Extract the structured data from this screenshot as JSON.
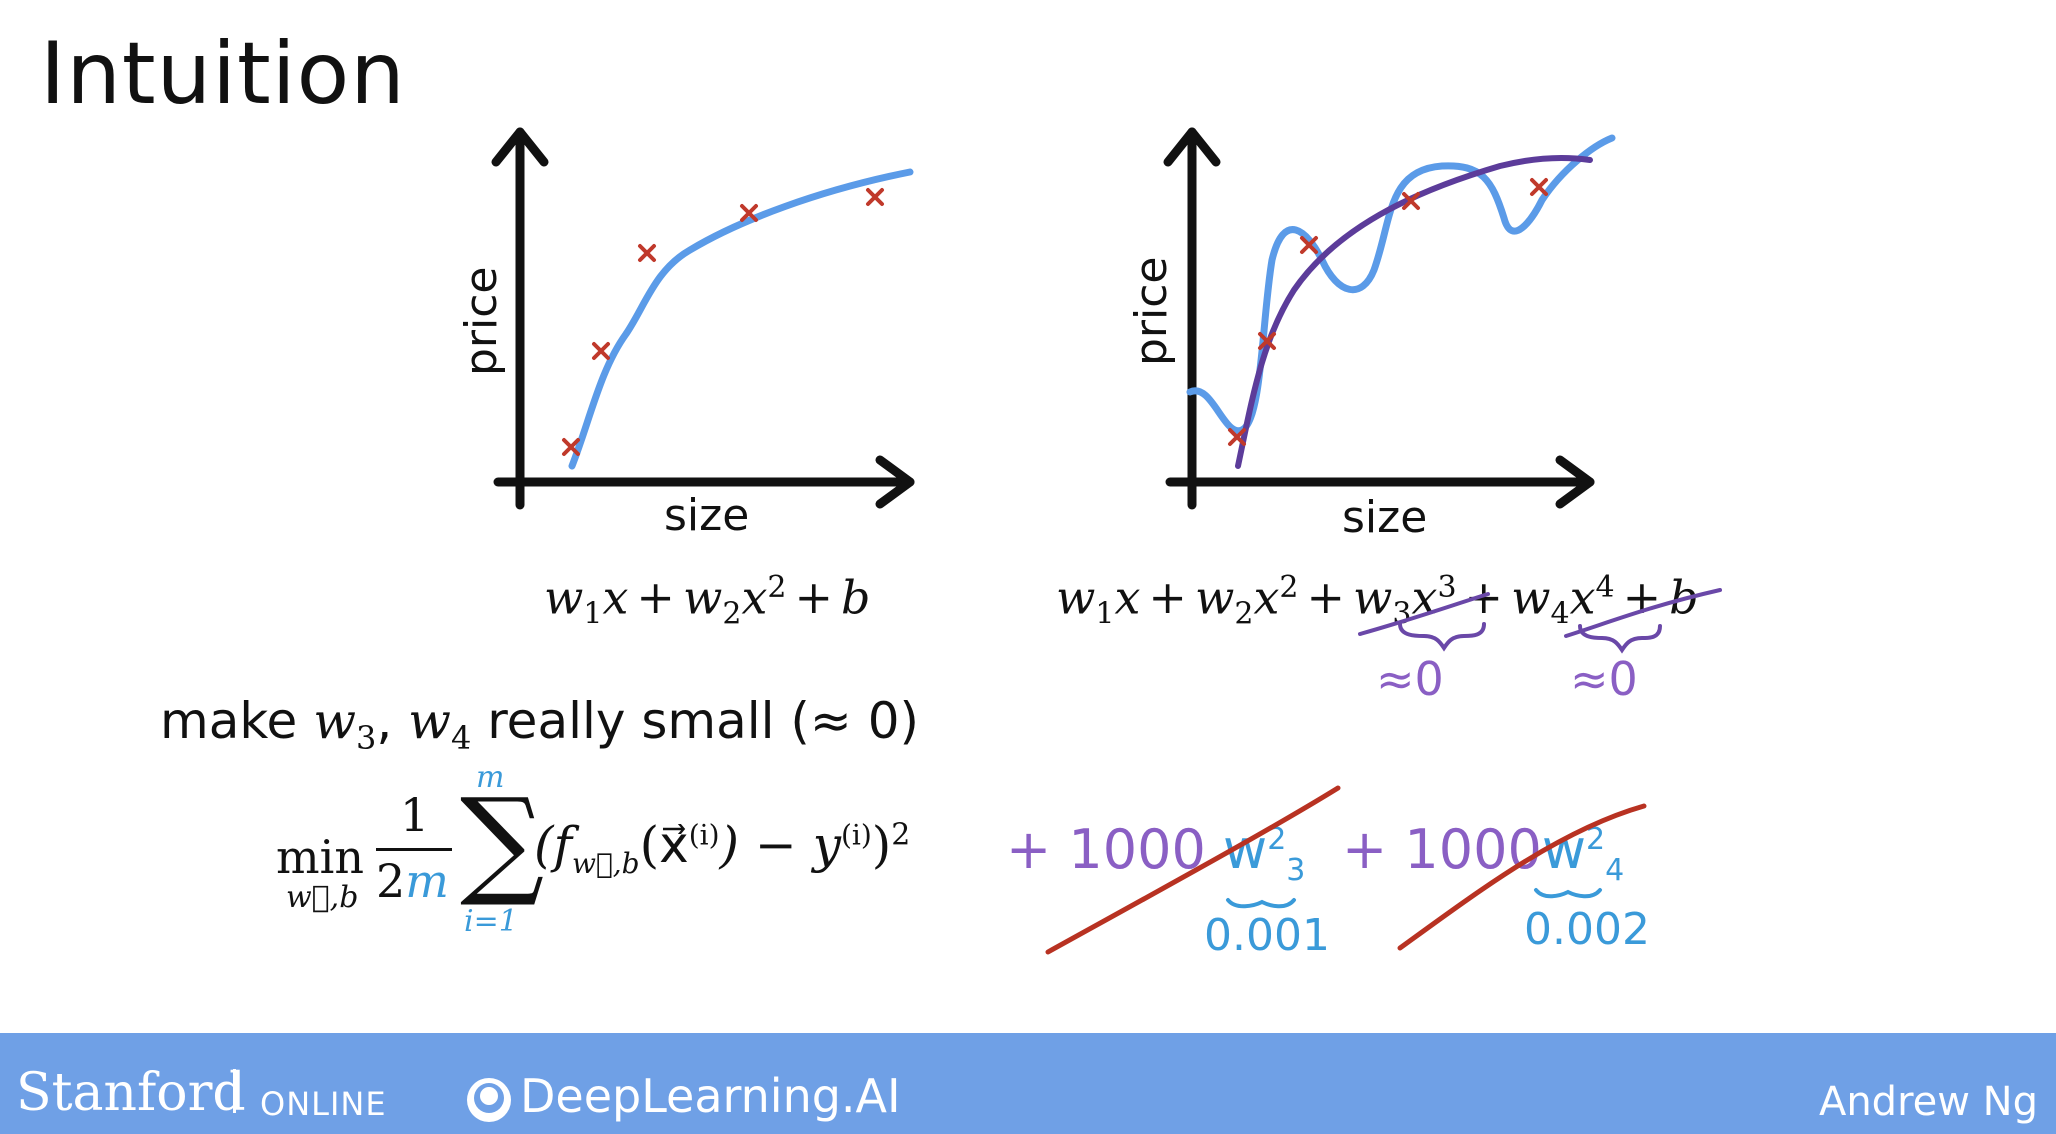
{
  "title": "Intuition",
  "left_plot": {
    "y_label": "price",
    "x_label": "size",
    "equation": {
      "terms": [
        "w",
        "1",
        "x",
        "+",
        "w",
        "2",
        "x",
        "2",
        "+",
        "b"
      ]
    }
  },
  "right_plot": {
    "y_label": "price",
    "x_label": "size",
    "approx_labels": [
      "≈0",
      "≈0"
    ]
  },
  "statement": {
    "prefix": "make ",
    "w3": "w",
    "w3_sub": "3",
    "comma": ", ",
    "w4": "w",
    "w4_sub": "4",
    "suffix": " really small (≈ 0)"
  },
  "cost": {
    "min": "min",
    "min_sub": "w⃗,b",
    "frac_num": "1",
    "frac_den_num": "2",
    "frac_den_m": "m",
    "sum_top": "m",
    "sum_bottom": "i=1",
    "body": "(f",
    "f_sub": "w⃗,b",
    "arg": "(x⃗",
    "arg_sup": "(i)",
    "minus_y": ") − y",
    "y_sup": "(i)",
    "close": ")",
    "power": "2"
  },
  "handwritten": {
    "penalty_w3": "+ 1000 ",
    "w3": "w",
    "w3_sup": "2",
    "w3_sub": "3",
    "penalty_w4": "+ 1000",
    "w4": "w",
    "w4_sup": "2",
    "w4_sub": "4",
    "value_w3": "0.001",
    "value_w4": "0.002"
  },
  "footer": {
    "stanford": "Stanford",
    "online": "ONLINE",
    "deeplearning": "DeepLearning.AI",
    "author": "Andrew Ng"
  },
  "colors": {
    "curve_blue": "#5b9be8",
    "curve_purple": "#5c3c9a",
    "marker_red": "#c0392b",
    "hand_purple": "#8a5fc4",
    "hand_blue": "#3a9ad9",
    "strike_red": "#b83222",
    "footer_bg": "#6fa0e6"
  }
}
